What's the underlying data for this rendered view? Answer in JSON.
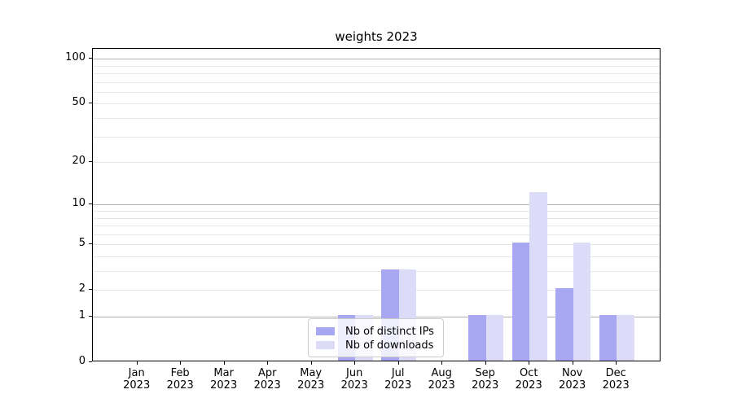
{
  "chart_data": {
    "type": "bar",
    "title": "weights 2023",
    "xlabel": "",
    "ylabel": "",
    "y_scale": "log10(1+v)",
    "ylim": [
      0,
      114
    ],
    "grid": "on",
    "legend_position": "lower-center-left inside plot",
    "categories": [
      {
        "month": "Jan",
        "year": "2023"
      },
      {
        "month": "Feb",
        "year": "2023"
      },
      {
        "month": "Mar",
        "year": "2023"
      },
      {
        "month": "Apr",
        "year": "2023"
      },
      {
        "month": "May",
        "year": "2023"
      },
      {
        "month": "Jun",
        "year": "2023"
      },
      {
        "month": "Jul",
        "year": "2023"
      },
      {
        "month": "Aug",
        "year": "2023"
      },
      {
        "month": "Sep",
        "year": "2023"
      },
      {
        "month": "Oct",
        "year": "2023"
      },
      {
        "month": "Nov",
        "year": "2023"
      },
      {
        "month": "Dec",
        "year": "2023"
      }
    ],
    "series": [
      {
        "name": "Nb of distinct IPs",
        "color": "#a8a8f2",
        "values": [
          0,
          0,
          0,
          0,
          0,
          1,
          3,
          0,
          1,
          5,
          2,
          1
        ]
      },
      {
        "name": "Nb of downloads",
        "color": "#dcdcf8",
        "values": [
          0,
          0,
          0,
          0,
          0,
          1,
          3,
          0,
          1,
          12,
          5,
          1
        ]
      }
    ],
    "y_ticks": [
      100,
      50,
      20,
      10,
      5,
      2,
      1,
      0
    ],
    "grid_major_values": [
      1,
      10,
      100
    ],
    "grid_minor_values": [
      2,
      3,
      4,
      5,
      6,
      7,
      8,
      9,
      20,
      30,
      40,
      50,
      60,
      70,
      80,
      90
    ],
    "colors": {
      "grid_major": "#b2b2b2",
      "grid_minor": "#e8e8e8",
      "spine": "#000000",
      "text": "#000000"
    }
  }
}
